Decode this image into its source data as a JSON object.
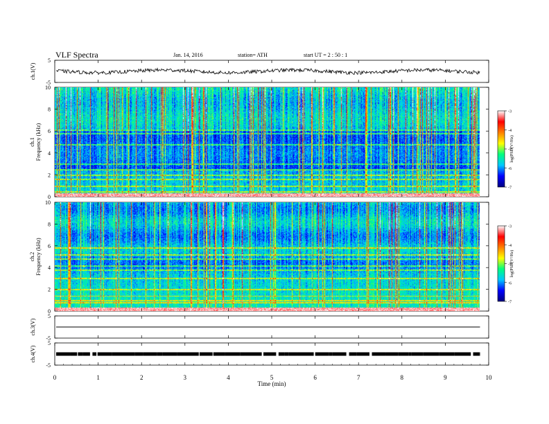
{
  "header": {
    "title": "VLF  Spectra",
    "date": "Jan. 14, 2016",
    "station": "station= ATH",
    "start": "start  UT  =   2  : 50 : 1"
  },
  "chart_data": {
    "type": "heatmap",
    "x": {
      "label": "Time  (min)",
      "range": [
        0,
        10
      ],
      "ticks": [
        "0",
        "1",
        "2",
        "3",
        "4",
        "5",
        "6",
        "7",
        "8",
        "9",
        "10"
      ],
      "data_end": 9.8
    },
    "panels": [
      {
        "id": "ch1_waveform",
        "kind": "line",
        "ylabel": "ch.1(V)",
        "yticks": [
          "5",
          "-5"
        ],
        "ylim": [
          -5,
          5
        ],
        "baseline": 0
      },
      {
        "id": "ch1_spectrogram",
        "kind": "heatmap",
        "ylabel_channel": "ch.1",
        "ylabel": "Frequency  (kHz)",
        "yticks": [
          "0",
          "2",
          "4",
          "6",
          "8",
          "10"
        ],
        "ylim": [
          0,
          10
        ]
      },
      {
        "id": "ch2_spectrogram",
        "kind": "heatmap",
        "ylabel_channel": "ch.2",
        "ylabel": "Frequency  (kHz)",
        "yticks": [
          "0",
          "2",
          "4",
          "6",
          "8",
          "10"
        ],
        "ylim": [
          0,
          10
        ]
      },
      {
        "id": "ch3_waveform",
        "kind": "line",
        "ylabel": "ch.3(V)",
        "yticks": [
          "5",
          "-5"
        ],
        "ylim": [
          -5,
          5
        ],
        "baseline": 0
      },
      {
        "id": "ch4_waveform",
        "kind": "line",
        "ylabel": "ch.4(V)",
        "yticks": [
          "5",
          "-5"
        ],
        "ylim": [
          -5,
          5
        ],
        "baseline": 0
      }
    ],
    "colorbar": {
      "label": "log(PSD(V²/Hz)",
      "ticks": [
        "-3",
        "-4",
        "-5",
        "-6",
        "-7"
      ],
      "range": [
        -7,
        -3
      ],
      "colors": [
        "#000080",
        "#0000ff",
        "#00c8ff",
        "#00ff80",
        "#ffff00",
        "#ff8000",
        "#ff0000",
        "#ffffff"
      ]
    }
  }
}
